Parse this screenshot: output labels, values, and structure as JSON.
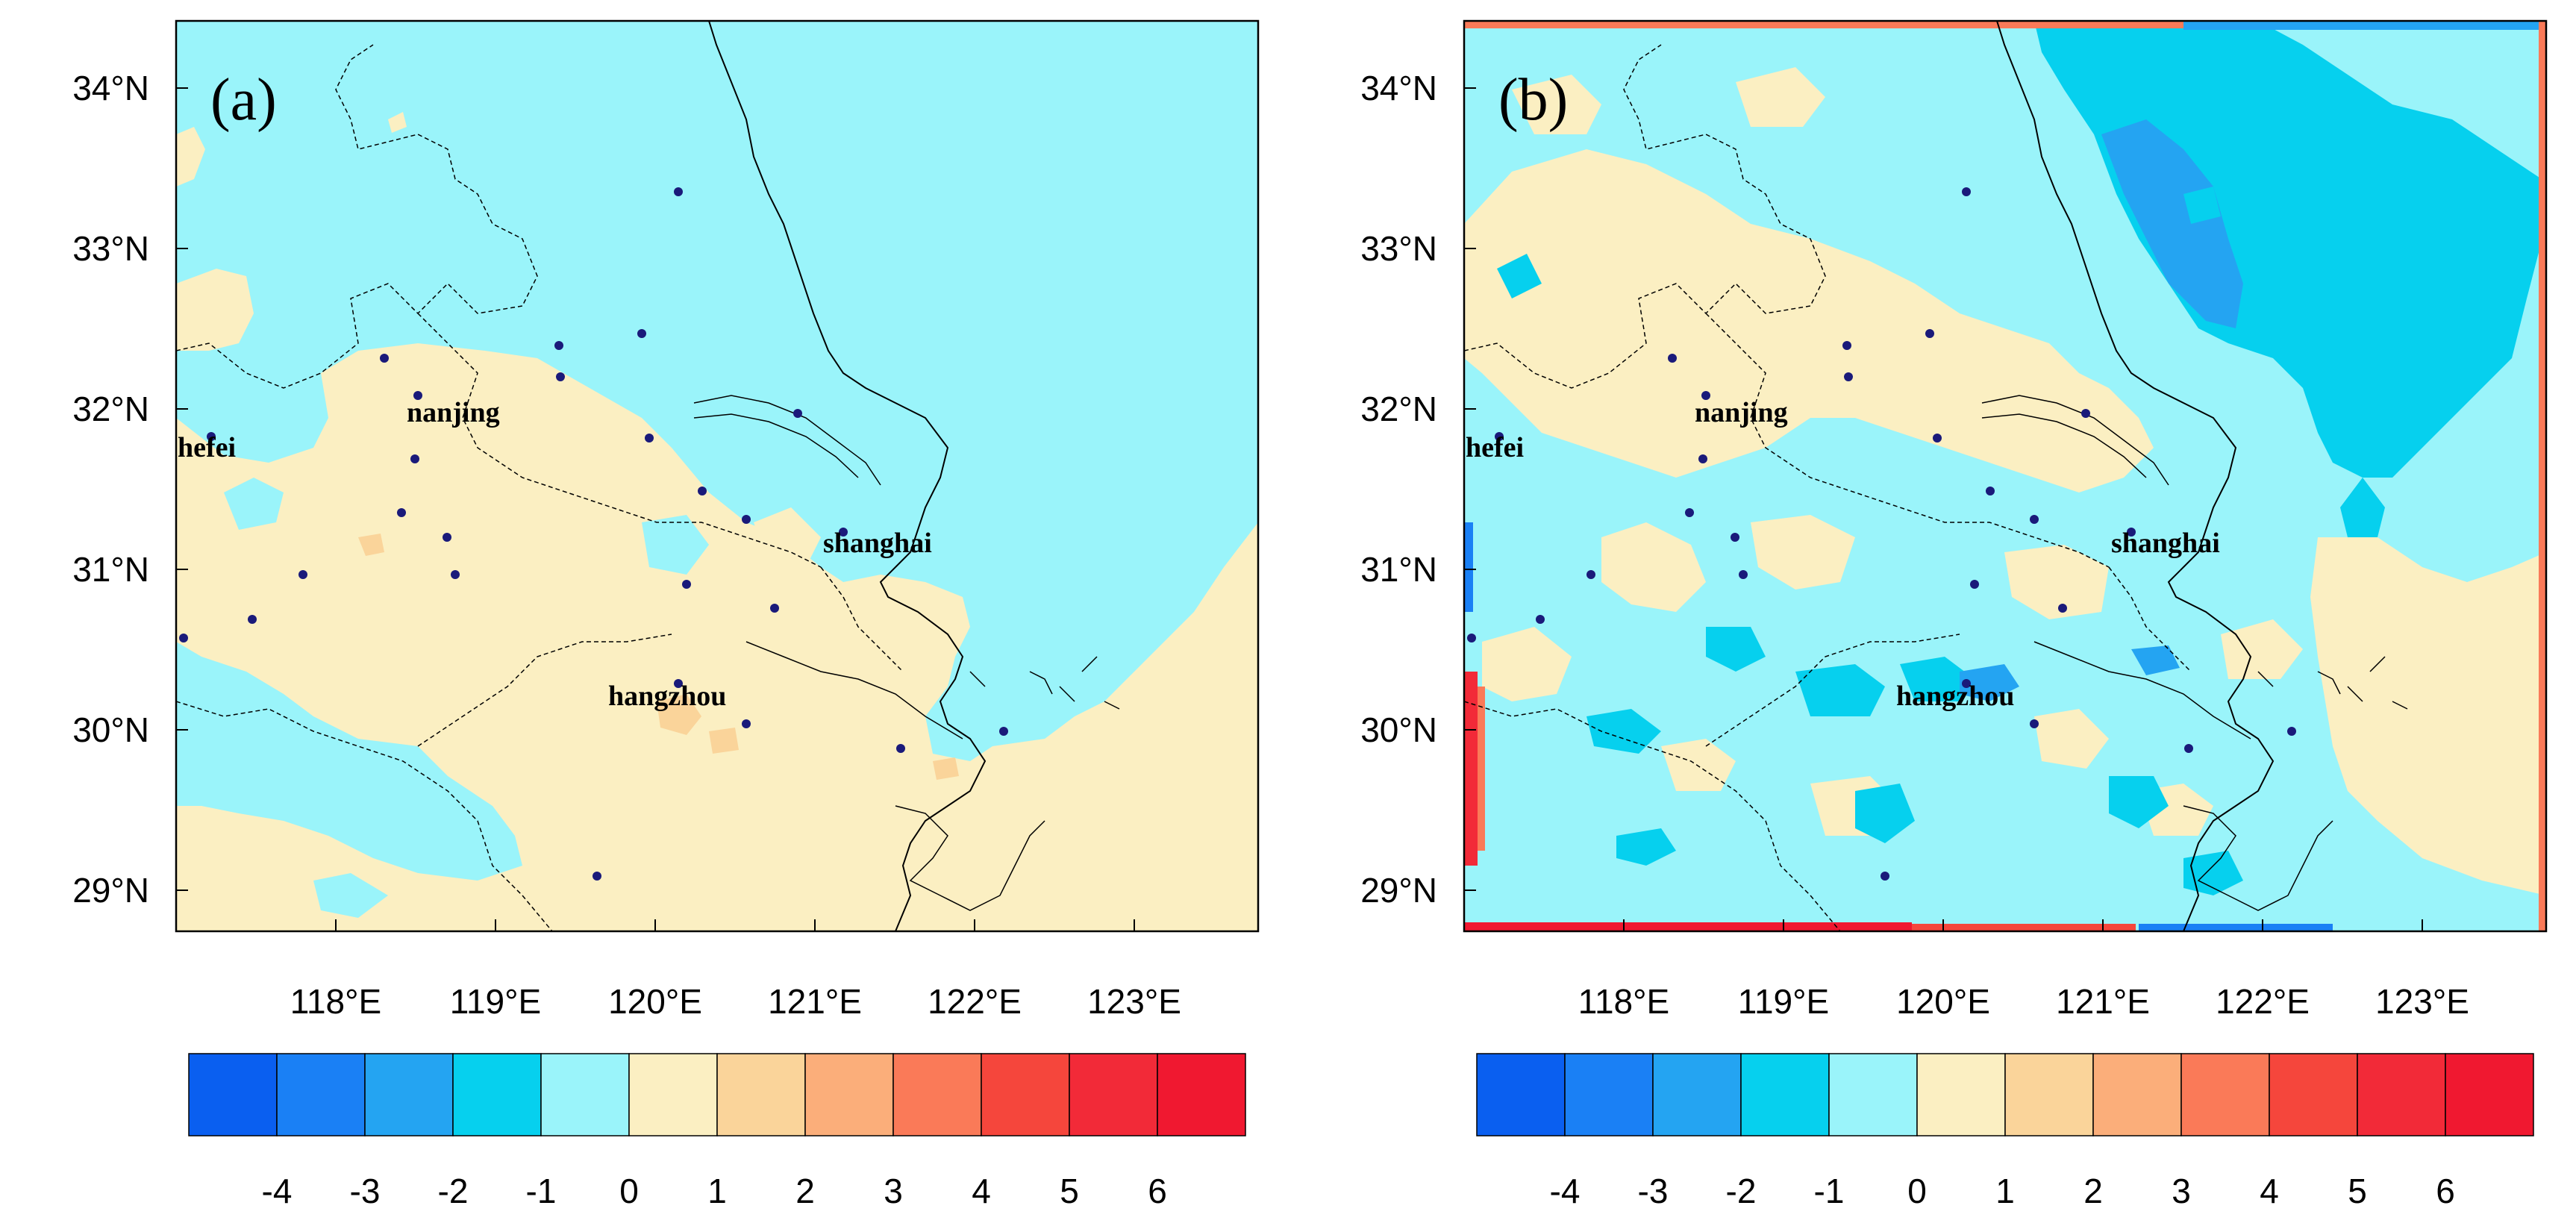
{
  "colors": {
    "bg": "#ffffff",
    "ink": "#000000",
    "station": "#1a1a7a",
    "levels": [
      "#0a5ff0",
      "#1a80f5",
      "#24a4f2",
      "#06d0ee",
      "#9af4fa",
      "#fbefc2",
      "#fad49a",
      "#fbae7a",
      "#fa7a58",
      "#f5463c",
      "#f22a38",
      "#f01830"
    ]
  },
  "axes": {
    "lat_ticks": [
      "34°N",
      "33°N",
      "32°N",
      "31°N",
      "30°N",
      "29°N"
    ],
    "lon_ticks": [
      "118°E",
      "119°E",
      "120°E",
      "121°E",
      "122°E",
      "123°E"
    ]
  },
  "colorbar": {
    "labels": [
      "-4",
      "-3",
      "-2",
      "-1",
      "0",
      "1",
      "2",
      "3",
      "4",
      "5",
      "6"
    ]
  },
  "panels": [
    {
      "label": "(a)"
    },
    {
      "label": "(b)"
    }
  ],
  "cities": [
    {
      "name": "nanjing"
    },
    {
      "name": "hefei"
    },
    {
      "name": "shanghai"
    },
    {
      "name": "hangzhou"
    }
  ]
}
